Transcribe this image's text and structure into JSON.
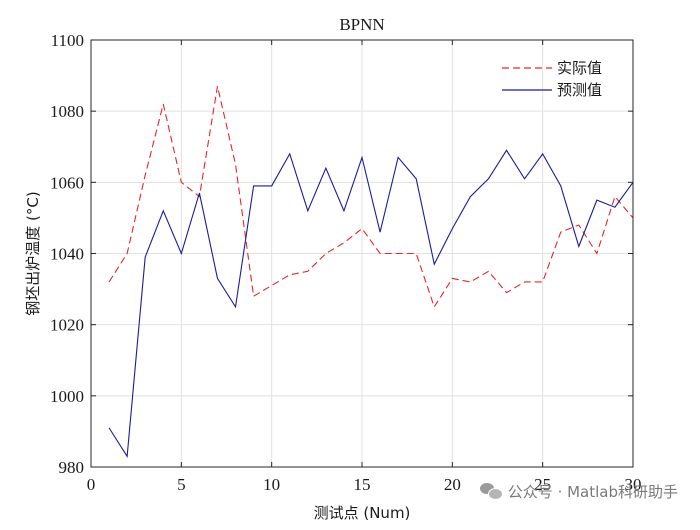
{
  "chart_data": {
    "type": "line",
    "title": "BPNN",
    "xlabel": "测试点 (Num)",
    "ylabel": "钢坯出炉温度 (°C)",
    "xlim": [
      0,
      30
    ],
    "ylim": [
      980,
      1100
    ],
    "xticks": [
      0,
      5,
      10,
      15,
      20,
      25,
      30
    ],
    "yticks": [
      980,
      1000,
      1020,
      1040,
      1060,
      1080,
      1100
    ],
    "grid": true,
    "legend_position": "top-right",
    "x": [
      1,
      2,
      3,
      4,
      5,
      6,
      7,
      8,
      9,
      10,
      11,
      12,
      13,
      14,
      15,
      16,
      17,
      18,
      19,
      20,
      21,
      22,
      23,
      24,
      25,
      26,
      27,
      28,
      29,
      30
    ],
    "series": [
      {
        "name": "实际值",
        "color": "#e8262b",
        "style": "dashed",
        "values": [
          1032,
          1040,
          1062,
          1082,
          1060,
          1056,
          1087,
          1065,
          1028,
          1031,
          1034,
          1035,
          1040,
          1043,
          1047,
          1040,
          1040,
          1040,
          1025,
          1033,
          1032,
          1035,
          1029,
          1032,
          1032,
          1046,
          1048,
          1040,
          1056,
          1050
        ]
      },
      {
        "name": "预测值",
        "color": "#1b1b9c",
        "style": "solid",
        "values": [
          991,
          983,
          1039,
          1052,
          1040,
          1057,
          1033,
          1025,
          1059,
          1059,
          1068,
          1052,
          1064,
          1052,
          1067,
          1046,
          1067,
          1061,
          1037,
          1047,
          1056,
          1061,
          1069,
          1061,
          1068,
          1059,
          1042,
          1055,
          1053,
          1060
        ]
      }
    ]
  },
  "watermark": {
    "icon": "wechat-icon",
    "text": "公众号 · Matlab科研助手"
  }
}
